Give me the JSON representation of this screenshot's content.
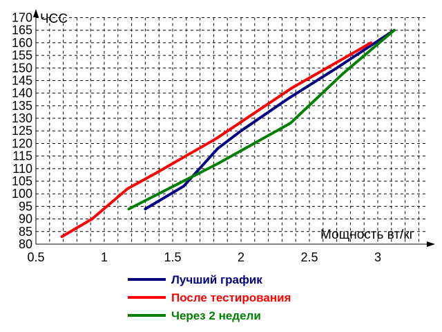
{
  "chart_data": {
    "type": "line",
    "xlabel": "Мощность вт/кг",
    "ylabel": "ЧСС",
    "xlim": [
      0.5,
      3.3
    ],
    "ylim": [
      80,
      170
    ],
    "xticks": [
      0.5,
      1,
      1.5,
      2,
      2.5,
      3
    ],
    "xtick_labels": [
      "0.5",
      "1",
      "1.5",
      "2",
      "2.5",
      "3"
    ],
    "yticks": [
      80,
      85,
      90,
      95,
      100,
      105,
      110,
      115,
      120,
      125,
      130,
      135,
      140,
      145,
      150,
      155,
      160,
      165,
      170
    ],
    "ytick_labels": [
      "80",
      "85",
      "90",
      "95",
      "100",
      "105",
      "110",
      "115",
      "120",
      "125",
      "130",
      "135",
      "140",
      "145",
      "150",
      "155",
      "160",
      "165",
      "170"
    ],
    "grid": true,
    "legend_position": "bottom-center",
    "series": [
      {
        "name": "Лучший график",
        "color": "#000080",
        "points": [
          [
            1.3,
            94
          ],
          [
            1.58,
            103
          ],
          [
            1.83,
            118
          ],
          [
            2.0,
            125
          ],
          [
            2.35,
            138
          ],
          [
            2.7,
            150
          ],
          [
            3.12,
            165
          ]
        ]
      },
      {
        "name": "После тестирования",
        "color": "#ff0000",
        "points": [
          [
            0.69,
            83
          ],
          [
            0.91,
            90
          ],
          [
            1.17,
            102
          ],
          [
            1.37,
            108
          ],
          [
            1.82,
            122
          ],
          [
            2.37,
            142
          ],
          [
            2.95,
            160
          ]
        ]
      },
      {
        "name": "Через 2 недели",
        "color": "#008000",
        "points": [
          [
            1.18,
            94
          ],
          [
            1.83,
            112
          ],
          [
            2.36,
            128
          ],
          [
            2.75,
            148
          ],
          [
            3.12,
            165
          ]
        ]
      }
    ]
  }
}
